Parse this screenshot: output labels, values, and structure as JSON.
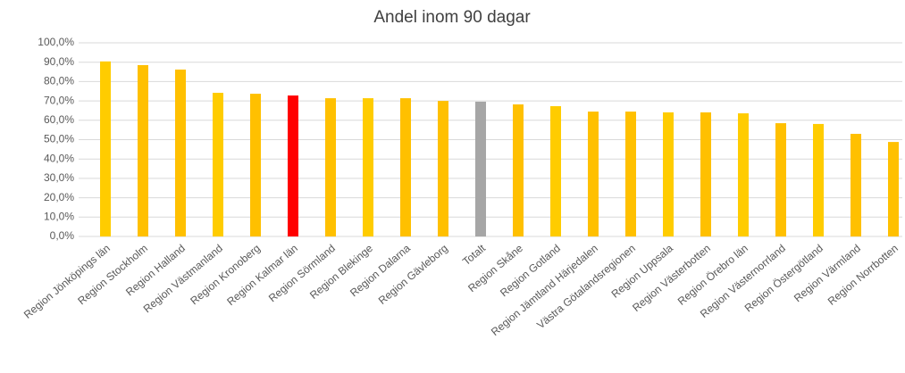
{
  "chart_data": {
    "type": "bar",
    "title": "Andel inom 90 dagar",
    "categories": [
      "Region Jönköpings län",
      "Region Stockholm",
      "Region Halland",
      "Region Västmanland",
      "Region Kronoberg",
      "Region Kalmar län",
      "Region Sörmland",
      "Region Blekinge",
      "Region Dalarna",
      "Region Gävleborg",
      "Totalt",
      "Region Skåne",
      "Region Gotland",
      "Region Jämtland Härjedalen",
      "Västra Götalandsregionen",
      "Region Uppsala",
      "Region Västerbotten",
      "Region Örebro län",
      "Region Västernorrland",
      "Region Östergötland",
      "Region Värmland",
      "Region Norrbotten"
    ],
    "values": [
      90.4,
      88.5,
      86.2,
      74.2,
      73.7,
      72.8,
      71.4,
      71.4,
      71.4,
      70.0,
      69.6,
      68.2,
      67.3,
      64.5,
      64.5,
      64.1,
      64.1,
      63.6,
      58.5,
      58.1,
      53.0,
      48.8
    ],
    "colors": [
      "#FFCC00",
      "#FFC000",
      "#FFC000",
      "#FFCC00",
      "#FFC000",
      "#FF0000",
      "#FFC000",
      "#FFCC00",
      "#FFC000",
      "#FFC000",
      "#A6A6A6",
      "#FFC000",
      "#FFCC00",
      "#FFC000",
      "#FFC000",
      "#FFCC00",
      "#FFC000",
      "#FFCC00",
      "#FFC000",
      "#FFCC00",
      "#FFC000",
      "#FFC000"
    ],
    "ylim": [
      0,
      100
    ],
    "yticks": [
      {
        "value": 0,
        "label": "0,0%"
      },
      {
        "value": 10,
        "label": "10,0%"
      },
      {
        "value": 20,
        "label": "20,0%"
      },
      {
        "value": 30,
        "label": "30,0%"
      },
      {
        "value": 40,
        "label": "40,0%"
      },
      {
        "value": 50,
        "label": "50,0%"
      },
      {
        "value": 60,
        "label": "60,0%"
      },
      {
        "value": 70,
        "label": "70,0%"
      },
      {
        "value": 80,
        "label": "80,0%"
      },
      {
        "value": 90,
        "label": "90,0%"
      },
      {
        "value": 100,
        "label": "100,0%"
      }
    ],
    "grid": true
  }
}
